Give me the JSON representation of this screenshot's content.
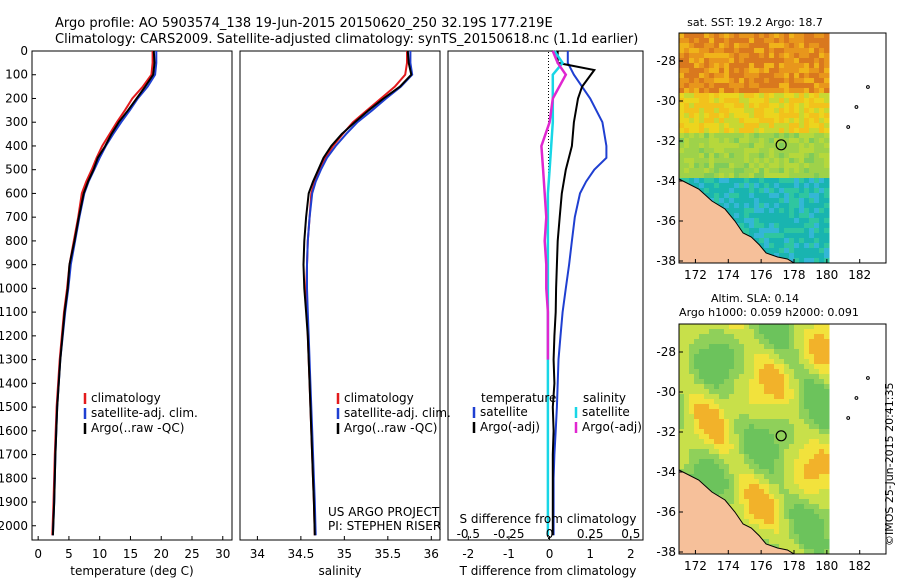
{
  "header": {
    "line1": "Argo profile: AO 5903574_138 19-Jun-2015 20150620_250 32.19S 177.219E",
    "line2": "Climatology: CARS2009. Satellite-adjusted climatology: synTS_20150618.nc (1.1d earlier)"
  },
  "credit": "©IMOS 25-Jun-2015 20:41:35",
  "project": {
    "line1": "US ARGO PROJECT",
    "line2": "PI: STEPHEN RISER"
  },
  "colors": {
    "climatology": "#e31a1c",
    "satellite": "#1f3fd1",
    "argo": "#000000",
    "sat_s": "#18d6e6",
    "argo_s": "#e026d0"
  },
  "chart_data": [
    {
      "id": "temperature",
      "type": "line",
      "xlabel": "temperature (deg C)",
      "xlim": [
        -1,
        31.5
      ],
      "ylim": [
        0,
        2060
      ],
      "yticks": [
        "0",
        "100",
        "200",
        "300",
        "400",
        "500",
        "600",
        "700",
        "800",
        "900",
        "1000",
        "1100",
        "1200",
        "1300",
        "1400",
        "1500",
        "1600",
        "1700",
        "1800",
        "1900",
        "2000"
      ],
      "xticks": [
        "0",
        "5",
        "10",
        "15",
        "20",
        "25",
        "30"
      ],
      "legend": [
        "climatology",
        "satellite-adj. clim.",
        "Argo(..raw -QC)"
      ],
      "series": [
        {
          "name": "climatology",
          "x": [
            18.6,
            18.6,
            18.4,
            17.0,
            15.3,
            14.1,
            12.8,
            11.6,
            10.4,
            9.5,
            8.7,
            7.8,
            7.1,
            6.5,
            5.8,
            5.1,
            4.7,
            4.2,
            3.5,
            3.0,
            2.7,
            2.5,
            2.3
          ],
          "y": [
            0,
            50,
            100,
            150,
            200,
            250,
            300,
            350,
            400,
            450,
            500,
            550,
            600,
            700,
            800,
            900,
            1000,
            1100,
            1300,
            1500,
            1700,
            1900,
            2040
          ]
        },
        {
          "name": "satellite-adj. clim.",
          "x": [
            19.2,
            19.2,
            19.0,
            17.8,
            16.2,
            14.9,
            13.5,
            12.2,
            11.0,
            10.0,
            9.1,
            8.2,
            7.5,
            6.7,
            6.0,
            5.3,
            4.9,
            4.4,
            3.6,
            3.1,
            2.8,
            2.6,
            2.4
          ],
          "y": [
            0,
            50,
            100,
            150,
            200,
            250,
            300,
            350,
            400,
            450,
            500,
            550,
            600,
            700,
            800,
            900,
            1000,
            1100,
            1300,
            1500,
            1700,
            1900,
            2040
          ]
        },
        {
          "name": "Argo(..raw -QC)",
          "x": [
            18.8,
            18.9,
            18.7,
            17.4,
            16.0,
            14.6,
            13.1,
            11.9,
            10.9,
            9.7,
            9.0,
            8.1,
            7.4,
            6.6,
            5.9,
            5.1,
            4.8,
            4.3,
            3.6,
            3.1,
            2.8,
            2.6,
            2.4
          ],
          "y": [
            0,
            50,
            100,
            150,
            200,
            250,
            300,
            350,
            400,
            450,
            500,
            550,
            600,
            700,
            800,
            900,
            1000,
            1100,
            1300,
            1500,
            1700,
            1900,
            2040
          ]
        }
      ]
    },
    {
      "id": "salinity",
      "type": "line",
      "xlabel": "salinity",
      "xlim": [
        33.8,
        36.1
      ],
      "ylim": [
        0,
        2060
      ],
      "xticks": [
        "34",
        "34.5",
        "35",
        "35.5",
        "36"
      ],
      "legend": [
        "climatology",
        "satellite-adj. clim.",
        "Argo(..raw -QC)"
      ],
      "series": [
        {
          "name": "climatology",
          "x": [
            35.72,
            35.72,
            35.7,
            35.58,
            35.42,
            35.26,
            35.1,
            34.98,
            34.87,
            34.78,
            34.72,
            34.66,
            34.62,
            34.6,
            34.58,
            34.57,
            34.56,
            34.57,
            34.58,
            34.6,
            34.62,
            34.64,
            34.65,
            34.66
          ],
          "y": [
            0,
            50,
            100,
            150,
            200,
            250,
            300,
            350,
            400,
            450,
            500,
            550,
            600,
            700,
            800,
            900,
            1000,
            1100,
            1200,
            1400,
            1600,
            1800,
            1900,
            2040
          ]
        },
        {
          "name": "satellite-adj. clim.",
          "x": [
            35.76,
            35.76,
            35.78,
            35.65,
            35.48,
            35.32,
            35.15,
            35.02,
            34.9,
            34.8,
            34.73,
            34.67,
            34.63,
            34.6,
            34.58,
            34.57,
            34.57,
            34.58,
            34.59,
            34.61,
            34.63,
            34.65,
            34.66,
            34.67
          ],
          "y": [
            0,
            50,
            100,
            150,
            200,
            250,
            300,
            350,
            400,
            450,
            500,
            550,
            600,
            700,
            800,
            900,
            1000,
            1100,
            1200,
            1400,
            1600,
            1800,
            1900,
            2040
          ]
        },
        {
          "name": "Argo(..raw -QC)",
          "x": [
            35.73,
            35.74,
            35.77,
            35.64,
            35.45,
            35.28,
            35.12,
            34.97,
            34.85,
            34.76,
            34.7,
            34.64,
            34.59,
            34.56,
            34.54,
            34.53,
            34.54,
            34.56,
            34.58,
            34.6,
            34.62,
            34.64,
            34.65,
            34.66
          ],
          "y": [
            0,
            50,
            100,
            150,
            200,
            250,
            300,
            350,
            400,
            450,
            500,
            550,
            600,
            700,
            800,
            900,
            1000,
            1100,
            1200,
            1400,
            1600,
            1800,
            1900,
            2040
          ]
        }
      ]
    },
    {
      "id": "difference",
      "type": "line",
      "xlabel": "T difference from climatology",
      "xlabel_top": "S difference from climatology",
      "xlim": [
        -2.5,
        2.3
      ],
      "ylim": [
        0,
        2060
      ],
      "xticks": [
        "-2",
        "-1",
        "0",
        "1",
        "2"
      ],
      "xticks_s": [
        "-0.5",
        "-0.25",
        "0",
        "0.25",
        "0.5"
      ],
      "legend_t": {
        "title": "temperature",
        "items": [
          "satellite",
          "Argo(-adj)"
        ]
      },
      "legend_s": {
        "title": "salinity",
        "items": [
          "satellite",
          "Argo(-adj)"
        ]
      },
      "series": [
        {
          "name": "T satellite",
          "x": [
            0.45,
            0.45,
            0.6,
            1.0,
            1.3,
            1.4,
            1.4,
            1.1,
            0.9,
            0.75,
            0.62,
            0.55,
            0.48,
            0.4,
            0.32,
            0.27,
            0.22,
            0.18,
            0.15,
            0.12,
            0.1,
            0.1,
            0.1
          ],
          "y": [
            0,
            50,
            100,
            200,
            300,
            400,
            450,
            500,
            550,
            600,
            700,
            800,
            900,
            1000,
            1100,
            1200,
            1300,
            1500,
            1600,
            1700,
            1800,
            1900,
            2040
          ]
        },
        {
          "name": "T Argo(-adj)",
          "x": [
            0.2,
            0.2,
            1.1,
            0.8,
            0.7,
            0.6,
            0.55,
            0.4,
            0.3,
            0.25,
            0.2,
            0.18,
            0.16,
            0.15,
            0.12,
            0.1,
            0.12,
            0.08,
            0.1,
            0.08,
            0.08,
            0.08
          ],
          "y": [
            0,
            50,
            80,
            150,
            200,
            300,
            400,
            500,
            600,
            700,
            800,
            900,
            1000,
            1100,
            1200,
            1300,
            1400,
            1500,
            1600,
            1700,
            1900,
            2040
          ]
        },
        {
          "name": "S satellite",
          "x": [
            0.03,
            0.08,
            0.02,
            0.02,
            0.02,
            0.01,
            0.0,
            -0.01,
            -0.01,
            -0.01,
            -0.01,
            -0.01,
            -0.01,
            -0.01,
            -0.01
          ],
          "y": [
            0,
            50,
            100,
            200,
            300,
            400,
            500,
            600,
            800,
            1000,
            1200,
            1400,
            1600,
            1800,
            2040
          ]
        },
        {
          "name": "S Argo(-adj)",
          "x": [
            0.02,
            0.05,
            0.1,
            0.02,
            0.0,
            -0.05,
            -0.04,
            -0.03,
            -0.02,
            -0.03,
            -0.02,
            -0.02,
            -0.01,
            -0.01,
            -0.01
          ],
          "y": [
            0,
            50,
            100,
            200,
            300,
            400,
            500,
            600,
            700,
            800,
            900,
            1000,
            1100,
            1200,
            1300
          ]
        }
      ]
    }
  ],
  "maps": [
    {
      "id": "sst-map",
      "title": "sat. SST: 19.2 Argo: 18.7",
      "lon_ticks": [
        "172",
        "174",
        "176",
        "178",
        "180",
        "182"
      ],
      "lat_ticks": [
        "-28",
        "-30",
        "-32",
        "-34",
        "-36",
        "-38"
      ]
    },
    {
      "id": "sla-map",
      "title1": "Altim. SLA: 0.14",
      "title2": "Argo h1000: 0.059 h2000: 0.091",
      "lon_ticks": [
        "172",
        "174",
        "176",
        "178",
        "180",
        "182"
      ],
      "lat_ticks": [
        "-28",
        "-30",
        "-32",
        "-34",
        "-36",
        "-38"
      ]
    }
  ]
}
